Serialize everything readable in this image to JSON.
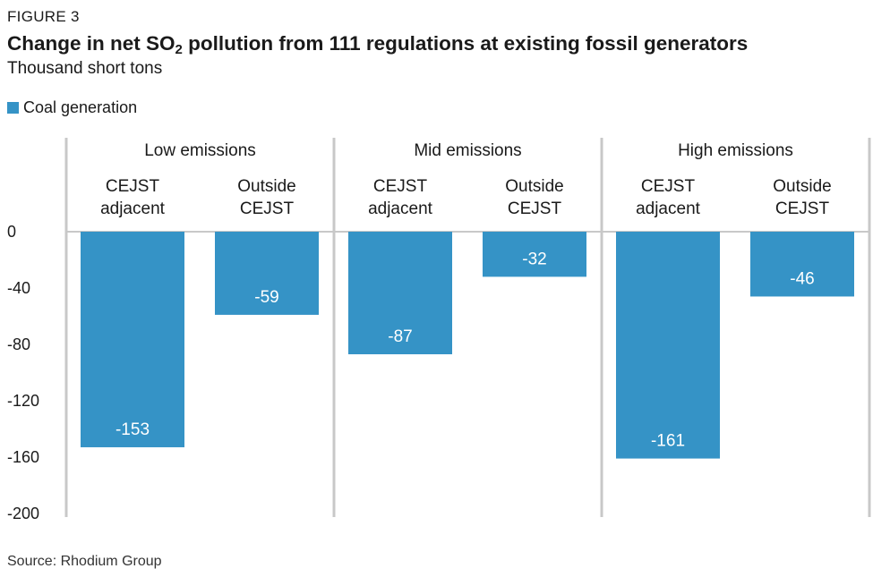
{
  "header": {
    "figure_label": "FIGURE 3",
    "title_pre": "Change in net SO",
    "title_sub": "2",
    "title_post": " pollution from 111 regulations at existing fossil generators",
    "subtitle": "Thousand short tons"
  },
  "footer": {
    "source": "Source: Rhodium Group"
  },
  "chart_data": {
    "type": "bar",
    "title": "Change in net SO2 pollution from 111 regulations at existing fossil generators",
    "ylabel": "Thousand short tons",
    "ylim": [
      -200,
      0
    ],
    "yticks": [
      0,
      -40,
      -80,
      -120,
      -160,
      -200
    ],
    "legend": {
      "placement": "top-left",
      "entries": [
        "Coal generation"
      ]
    },
    "colors": {
      "bar": "#3593c6",
      "divider": "#c8c8c8"
    },
    "groups": [
      {
        "label": "Low emissions",
        "categories": [
          [
            "CEJST",
            "adjacent"
          ],
          [
            "Outside",
            "CEJST"
          ]
        ],
        "values": [
          -153,
          -59
        ]
      },
      {
        "label": "Mid emissions",
        "categories": [
          [
            "CEJST",
            "adjacent"
          ],
          [
            "Outside",
            "CEJST"
          ]
        ],
        "values": [
          -87,
          -32
        ]
      },
      {
        "label": "High emissions",
        "categories": [
          [
            "CEJST",
            "adjacent"
          ],
          [
            "Outside",
            "CEJST"
          ]
        ],
        "values": [
          -161,
          -46
        ]
      }
    ],
    "series": [
      {
        "name": "Coal generation",
        "values": [
          -153,
          -59,
          -87,
          -32,
          -161,
          -46
        ]
      }
    ]
  }
}
